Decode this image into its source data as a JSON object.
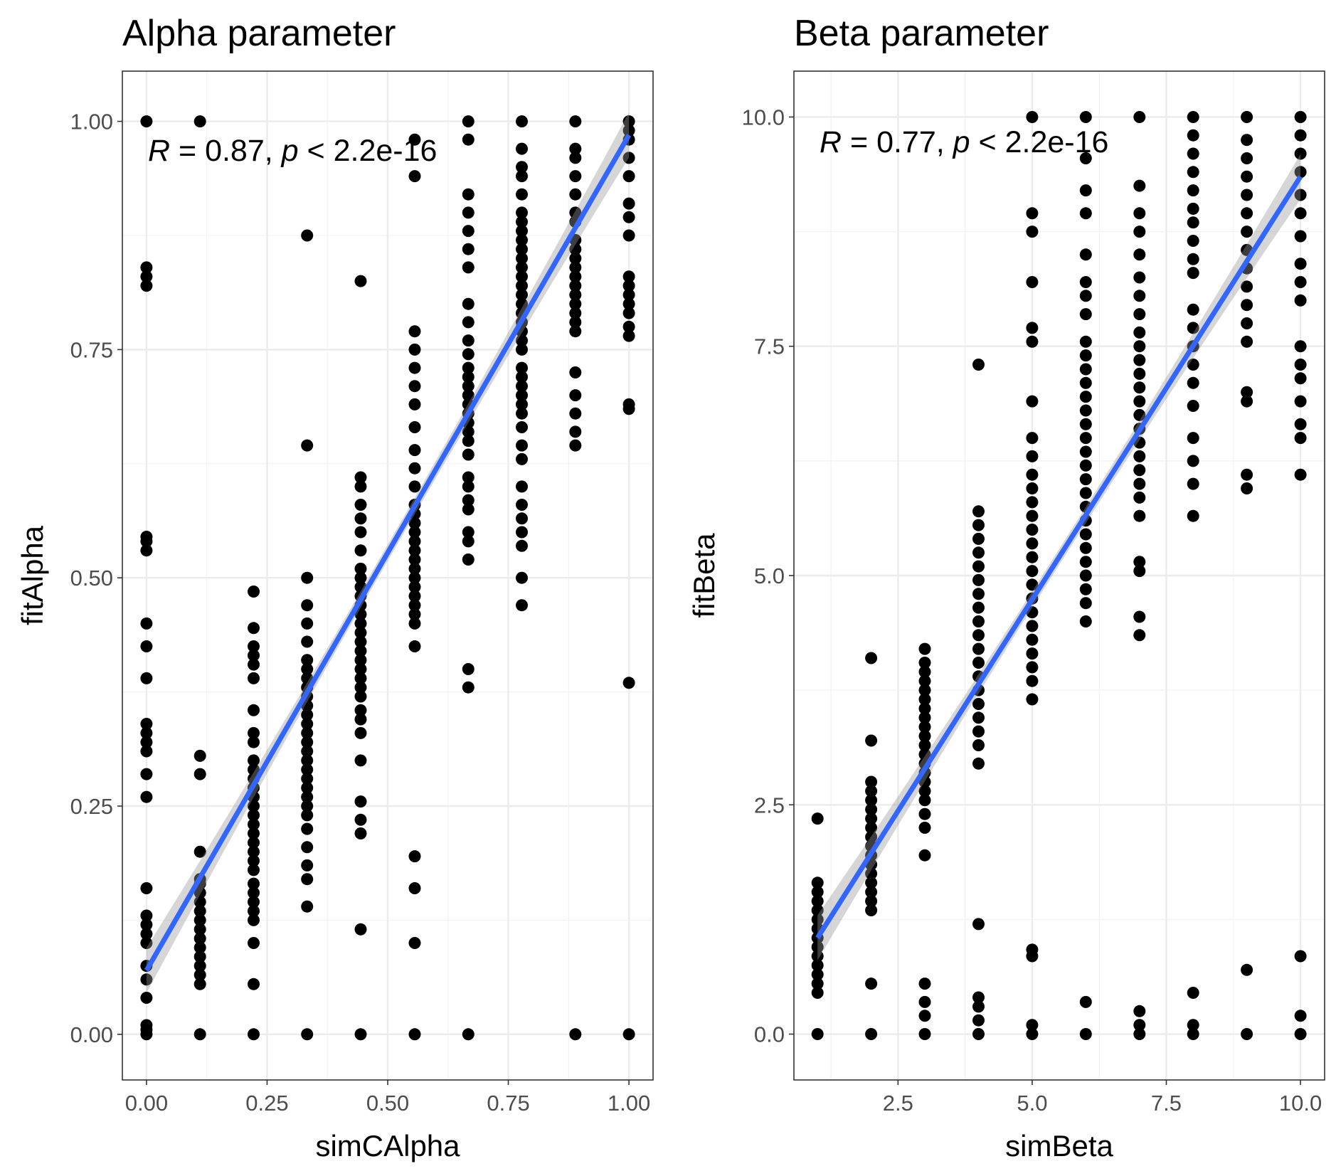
{
  "chart_data": [
    {
      "type": "scatter",
      "title": "Alpha parameter",
      "xlabel": "simCAlpha",
      "ylabel": "fitAlpha",
      "xlim": [
        -0.05,
        1.05
      ],
      "ylim": [
        -0.05,
        1.055
      ],
      "xticks": [
        0,
        0.25,
        0.5,
        0.75,
        1
      ],
      "xtick_labels": [
        "0.00",
        "0.25",
        "0.50",
        "0.75",
        "1.00"
      ],
      "yticks": [
        0,
        0.25,
        0.5,
        0.75,
        1
      ],
      "ytick_labels": [
        "0.00",
        "0.25",
        "0.50",
        "0.75",
        "1.00"
      ],
      "grid": true,
      "annotation": {
        "r": "R",
        "eq1": " = 0.87, ",
        "p": "p",
        "eq2": " < 2.2e-16"
      },
      "fit_line": {
        "x": [
          0,
          1
        ],
        "y": [
          0.07,
          0.985
        ],
        "color": "#3366FF"
      },
      "points": [
        {
          "x": 0.0,
          "y": [
            0,
            0.005,
            0.01,
            0.04,
            0.06,
            0.075,
            0.1,
            0.11,
            0.12,
            0.13,
            0.16,
            0.26,
            0.285,
            0.31,
            0.32,
            0.33,
            0.34,
            0.39,
            0.425,
            0.45,
            0.53,
            0.54,
            0.545,
            0.82,
            0.83,
            0.84,
            1.0
          ]
        },
        {
          "x": 0.111,
          "y": [
            0,
            0.055,
            0.065,
            0.075,
            0.085,
            0.095,
            0.105,
            0.115,
            0.125,
            0.135,
            0.145,
            0.155,
            0.165,
            0.17,
            0.2,
            0.285,
            0.305,
            1.0
          ]
        },
        {
          "x": 0.222,
          "y": [
            0,
            0.055,
            0.1,
            0.125,
            0.135,
            0.145,
            0.155,
            0.165,
            0.18,
            0.19,
            0.2,
            0.21,
            0.22,
            0.23,
            0.24,
            0.25,
            0.26,
            0.27,
            0.28,
            0.29,
            0.3,
            0.32,
            0.33,
            0.355,
            0.39,
            0.405,
            0.415,
            0.425,
            0.445,
            0.485
          ]
        },
        {
          "x": 0.333,
          "y": [
            0,
            0.14,
            0.17,
            0.185,
            0.205,
            0.225,
            0.24,
            0.25,
            0.26,
            0.27,
            0.28,
            0.29,
            0.3,
            0.31,
            0.32,
            0.33,
            0.34,
            0.35,
            0.36,
            0.37,
            0.38,
            0.39,
            0.4,
            0.41,
            0.43,
            0.45,
            0.47,
            0.5,
            0.645,
            0.875
          ]
        },
        {
          "x": 0.444,
          "y": [
            0,
            0.115,
            0.22,
            0.235,
            0.255,
            0.3,
            0.33,
            0.345,
            0.355,
            0.37,
            0.38,
            0.39,
            0.4,
            0.41,
            0.42,
            0.43,
            0.44,
            0.45,
            0.46,
            0.47,
            0.48,
            0.49,
            0.5,
            0.51,
            0.53,
            0.55,
            0.565,
            0.58,
            0.6,
            0.61,
            0.825
          ]
        },
        {
          "x": 0.556,
          "y": [
            0,
            0.1,
            0.16,
            0.195,
            0.425,
            0.45,
            0.46,
            0.47,
            0.48,
            0.49,
            0.5,
            0.51,
            0.52,
            0.53,
            0.54,
            0.55,
            0.56,
            0.57,
            0.58,
            0.6,
            0.62,
            0.64,
            0.665,
            0.69,
            0.71,
            0.73,
            0.75,
            0.77,
            0.94,
            0.98
          ]
        },
        {
          "x": 0.667,
          "y": [
            0,
            0.38,
            0.4,
            0.52,
            0.54,
            0.55,
            0.575,
            0.585,
            0.6,
            0.61,
            0.635,
            0.65,
            0.66,
            0.67,
            0.68,
            0.69,
            0.7,
            0.71,
            0.72,
            0.73,
            0.745,
            0.76,
            0.78,
            0.8,
            0.84,
            0.86,
            0.88,
            0.9,
            0.92,
            0.98,
            1.0
          ]
        },
        {
          "x": 0.778,
          "y": [
            0.47,
            0.5,
            0.535,
            0.55,
            0.565,
            0.58,
            0.6,
            0.63,
            0.645,
            0.665,
            0.68,
            0.69,
            0.7,
            0.71,
            0.72,
            0.73,
            0.75,
            0.76,
            0.77,
            0.78,
            0.79,
            0.8,
            0.81,
            0.82,
            0.83,
            0.84,
            0.85,
            0.86,
            0.87,
            0.88,
            0.89,
            0.9,
            0.92,
            0.94,
            0.95,
            0.97,
            1.0
          ]
        },
        {
          "x": 0.889,
          "y": [
            0,
            0.645,
            0.66,
            0.68,
            0.7,
            0.725,
            0.77,
            0.78,
            0.79,
            0.8,
            0.81,
            0.82,
            0.83,
            0.84,
            0.85,
            0.86,
            0.87,
            0.89,
            0.9,
            0.92,
            0.94,
            0.96,
            0.97,
            1.0
          ]
        },
        {
          "x": 1.0,
          "y": [
            0,
            0.385,
            0.685,
            0.69,
            0.765,
            0.775,
            0.79,
            0.8,
            0.81,
            0.82,
            0.83,
            0.875,
            0.895,
            0.91,
            0.94,
            0.96,
            0.98,
            0.99,
            1.0
          ]
        }
      ]
    },
    {
      "type": "scatter",
      "title": "Beta parameter",
      "xlabel": "simBeta",
      "ylabel": "fitBeta",
      "xlim": [
        0.56,
        10.45
      ],
      "ylim": [
        -0.5,
        10.5
      ],
      "xticks": [
        2.5,
        5,
        7.5,
        10
      ],
      "xtick_labels": [
        "2.5",
        "5.0",
        "7.5",
        "10.0"
      ],
      "yticks": [
        0,
        2.5,
        5,
        7.5,
        10
      ],
      "ytick_labels": [
        "0.0",
        "2.5",
        "5.0",
        "7.5",
        "10.0"
      ],
      "grid": true,
      "annotation": {
        "r": "R",
        "eq1": " = 0.77, ",
        "p": "p",
        "eq2": " < 2.2e-16"
      },
      "fit_line": {
        "x": [
          1,
          10
        ],
        "y": [
          1.05,
          9.35
        ],
        "color": "#3366FF"
      },
      "points": [
        {
          "x": 1,
          "y": [
            0,
            0.45,
            0.55,
            0.65,
            0.75,
            0.85,
            0.95,
            1.05,
            1.15,
            1.25,
            1.35,
            1.45,
            1.55,
            1.65,
            2.35
          ]
        },
        {
          "x": 2,
          "y": [
            0,
            0.55,
            1.35,
            1.45,
            1.55,
            1.65,
            1.75,
            1.85,
            1.95,
            2.05,
            2.15,
            2.25,
            2.35,
            2.45,
            2.55,
            2.65,
            2.75,
            3.2,
            4.1
          ]
        },
        {
          "x": 3,
          "y": [
            0,
            0.2,
            0.35,
            0.55,
            1.95,
            2.25,
            2.4,
            2.55,
            2.65,
            2.75,
            2.85,
            2.95,
            3.05,
            3.15,
            3.25,
            3.35,
            3.45,
            3.55,
            3.65,
            3.75,
            3.85,
            3.95,
            4.05,
            4.2
          ]
        },
        {
          "x": 4,
          "y": [
            0,
            0.15,
            0.3,
            0.4,
            1.2,
            2.95,
            3.15,
            3.3,
            3.45,
            3.6,
            3.75,
            3.9,
            4.05,
            4.2,
            4.35,
            4.5,
            4.65,
            4.8,
            4.95,
            5.1,
            5.25,
            5.4,
            5.55,
            5.7,
            7.3
          ]
        },
        {
          "x": 5,
          "y": [
            0,
            0.1,
            0.85,
            0.92,
            3.65,
            3.85,
            4.0,
            4.15,
            4.3,
            4.45,
            4.6,
            4.75,
            4.9,
            5.05,
            5.2,
            5.35,
            5.5,
            5.65,
            5.8,
            5.95,
            6.1,
            6.3,
            6.5,
            6.9,
            7.55,
            7.7,
            8.2,
            8.75,
            8.95,
            10.0
          ]
        },
        {
          "x": 6,
          "y": [
            0,
            0.35,
            4.5,
            4.7,
            4.85,
            5.0,
            5.15,
            5.3,
            5.45,
            5.6,
            5.75,
            5.9,
            6.05,
            6.2,
            6.35,
            6.5,
            6.65,
            6.8,
            6.95,
            7.1,
            7.25,
            7.4,
            7.55,
            7.85,
            8.05,
            8.2,
            8.5,
            8.95,
            9.2,
            9.55,
            10.0
          ]
        },
        {
          "x": 7,
          "y": [
            0,
            0.1,
            0.25,
            4.35,
            4.55,
            5.05,
            5.15,
            5.65,
            5.85,
            6.0,
            6.15,
            6.3,
            6.45,
            6.6,
            6.75,
            6.9,
            7.05,
            7.2,
            7.35,
            7.5,
            7.65,
            7.85,
            8.05,
            8.25,
            8.5,
            8.75,
            8.95,
            9.25,
            10.0
          ]
        },
        {
          "x": 8,
          "y": [
            0,
            0.1,
            0.45,
            5.65,
            6.0,
            6.25,
            6.5,
            6.85,
            7.1,
            7.3,
            7.5,
            7.7,
            7.9,
            8.3,
            8.45,
            8.65,
            8.85,
            9.0,
            9.2,
            9.4,
            9.6,
            9.8,
            10.0
          ]
        },
        {
          "x": 9,
          "y": [
            0,
            0.7,
            5.95,
            6.1,
            6.9,
            7.0,
            7.55,
            7.75,
            7.95,
            8.15,
            8.35,
            8.55,
            8.75,
            8.95,
            9.15,
            9.35,
            9.55,
            9.75,
            10.0
          ]
        },
        {
          "x": 10,
          "y": [
            0,
            0.2,
            0.85,
            6.1,
            6.5,
            6.65,
            6.9,
            7.15,
            7.3,
            7.5,
            8.0,
            8.2,
            8.4,
            8.7,
            8.95,
            9.15,
            9.4,
            9.6,
            9.8,
            10.0
          ]
        }
      ]
    }
  ]
}
